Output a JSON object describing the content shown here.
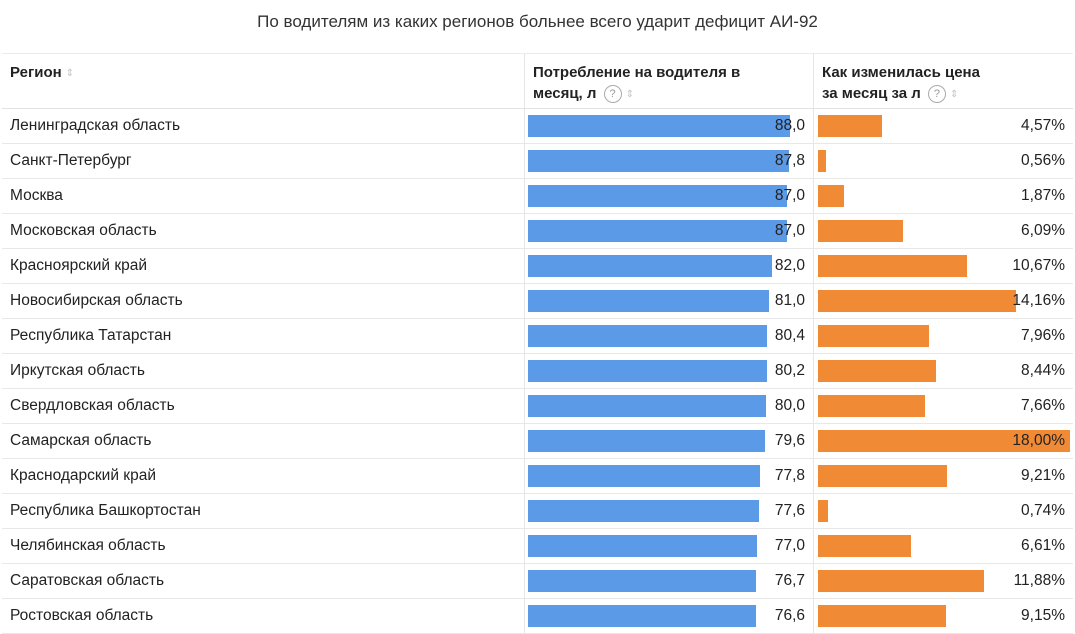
{
  "title": "По водителям из каких регионов больнее всего ударит дефицит АИ-92",
  "header": {
    "region": "Регион",
    "consumption_line1": "Потребление на водителя в",
    "consumption_line2": "месяц, л",
    "price_line1": "Как изменилась цена",
    "price_line2": "за месяц за л",
    "help_glyph": "?",
    "sort_glyph": "⇕"
  },
  "colors": {
    "consumption_bar": "#5a9ae6",
    "price_bar": "#f08a35"
  },
  "chart_data": {
    "type": "table",
    "title": "По водителям из каких регионов больнее всего ударит дефицит АИ-92",
    "columns": [
      "Регион",
      "Потребление на водителя в месяц, л",
      "Как изменилась цена за месяц за л"
    ],
    "consumption_max": 88.0,
    "price_max": 18.0,
    "rows": [
      {
        "region": "Ленинградская область",
        "consumption": 88.0,
        "consumption_label": "88,0",
        "price_change": 4.57,
        "price_label": "4,57%"
      },
      {
        "region": "Санкт-Петербург",
        "consumption": 87.8,
        "consumption_label": "87,8",
        "price_change": 0.56,
        "price_label": "0,56%"
      },
      {
        "region": "Москва",
        "consumption": 87.0,
        "consumption_label": "87,0",
        "price_change": 1.87,
        "price_label": "1,87%"
      },
      {
        "region": "Московская область",
        "consumption": 87.0,
        "consumption_label": "87,0",
        "price_change": 6.09,
        "price_label": "6,09%"
      },
      {
        "region": "Красноярский край",
        "consumption": 82.0,
        "consumption_label": "82,0",
        "price_change": 10.67,
        "price_label": "10,67%"
      },
      {
        "region": "Новосибирская область",
        "consumption": 81.0,
        "consumption_label": "81,0",
        "price_change": 14.16,
        "price_label": "14,16%"
      },
      {
        "region": "Республика Татарстан",
        "consumption": 80.4,
        "consumption_label": "80,4",
        "price_change": 7.96,
        "price_label": "7,96%"
      },
      {
        "region": "Иркутская область",
        "consumption": 80.2,
        "consumption_label": "80,2",
        "price_change": 8.44,
        "price_label": "8,44%"
      },
      {
        "region": "Свердловская область",
        "consumption": 80.0,
        "consumption_label": "80,0",
        "price_change": 7.66,
        "price_label": "7,66%"
      },
      {
        "region": "Самарская область",
        "consumption": 79.6,
        "consumption_label": "79,6",
        "price_change": 18.0,
        "price_label": "18,00%"
      },
      {
        "region": "Краснодарский край",
        "consumption": 77.8,
        "consumption_label": "77,8",
        "price_change": 9.21,
        "price_label": "9,21%"
      },
      {
        "region": "Республика Башкортостан",
        "consumption": 77.6,
        "consumption_label": "77,6",
        "price_change": 0.74,
        "price_label": "0,74%"
      },
      {
        "region": "Челябинская область",
        "consumption": 77.0,
        "consumption_label": "77,0",
        "price_change": 6.61,
        "price_label": "6,61%"
      },
      {
        "region": "Саратовская область",
        "consumption": 76.7,
        "consumption_label": "76,7",
        "price_change": 11.88,
        "price_label": "11,88%"
      },
      {
        "region": "Ростовская область",
        "consumption": 76.6,
        "consumption_label": "76,6",
        "price_change": 9.15,
        "price_label": "9,15%"
      }
    ]
  }
}
